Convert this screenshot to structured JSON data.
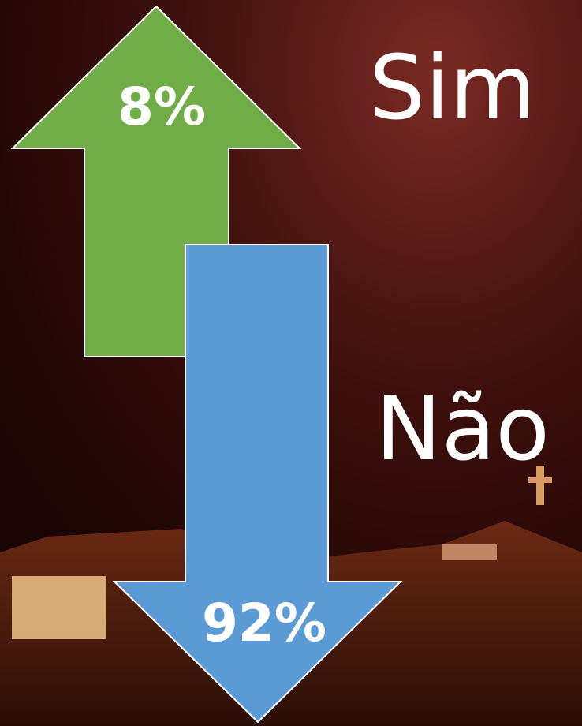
{
  "items": [
    {
      "label": "Sim",
      "value": "8%"
    },
    {
      "label": "Não",
      "value": "92%"
    }
  ]
}
